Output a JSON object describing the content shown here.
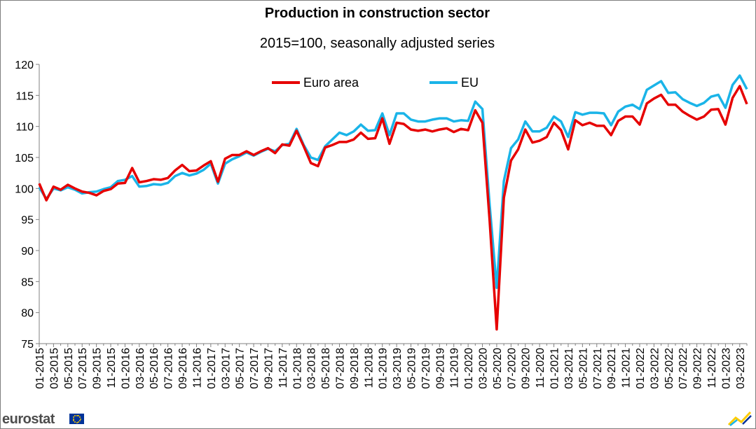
{
  "chart_data": {
    "type": "line",
    "title": "Production in construction sector",
    "subtitle": "2015=100, seasonally adjusted series",
    "xlabel": "",
    "ylabel": "",
    "ylim": [
      75,
      120
    ],
    "yticks": [
      75,
      80,
      85,
      90,
      95,
      100,
      105,
      110,
      115,
      120
    ],
    "x_start": "01-2015",
    "x_end": "03-2023",
    "x_tick_labels": [
      "01-2015",
      "03-2015",
      "05-2015",
      "07-2015",
      "09-2015",
      "11-2015",
      "01-2016",
      "03-2016",
      "05-2016",
      "07-2016",
      "09-2016",
      "11-2016",
      "01-2017",
      "03-2017",
      "05-2017",
      "07-2017",
      "09-2017",
      "11-2017",
      "01-2018",
      "03-2018",
      "05-2018",
      "07-2018",
      "09-2018",
      "11-2018",
      "01-2019",
      "03-2019",
      "05-2019",
      "07-2019",
      "09-2019",
      "11-2019",
      "01-2020",
      "03-2020",
      "05-2020",
      "07-2020",
      "09-2020",
      "11-2020",
      "01-2021",
      "03-2021",
      "05-2021",
      "07-2021",
      "09-2021",
      "11-2021",
      "01-2022",
      "03-2022",
      "05-2022",
      "07-2022",
      "09-2022",
      "11-2022",
      "01-2023",
      "03-2023"
    ],
    "grid": false,
    "legend_placement": "top-center",
    "series": [
      {
        "name": "Euro area",
        "color": "#e60000",
        "values": [
          100.8,
          98.1,
          100.3,
          99.8,
          100.6,
          100.0,
          99.5,
          99.3,
          98.9,
          99.6,
          99.9,
          100.8,
          100.9,
          103.3,
          101.0,
          101.2,
          101.5,
          101.4,
          101.7,
          102.9,
          103.8,
          102.8,
          102.9,
          103.7,
          104.4,
          101.1,
          104.8,
          105.4,
          105.4,
          106.0,
          105.4,
          106.0,
          106.5,
          105.7,
          107.1,
          106.9,
          109.3,
          106.8,
          104.1,
          103.6,
          106.6,
          107.0,
          107.5,
          107.5,
          107.9,
          109.0,
          108.0,
          108.1,
          111.3,
          107.2,
          110.6,
          110.4,
          109.5,
          109.3,
          109.5,
          109.2,
          109.5,
          109.7,
          109.1,
          109.6,
          109.4,
          112.6,
          110.6,
          95.0,
          77.3,
          98.5,
          104.5,
          106.3,
          109.5,
          107.4,
          107.7,
          108.3,
          110.6,
          109.4,
          106.3,
          111.0,
          110.2,
          110.6,
          110.1,
          110.1,
          108.6,
          110.9,
          111.6,
          111.6,
          110.3,
          113.7,
          114.5,
          115.1,
          113.5,
          113.5,
          112.4,
          111.7,
          111.1,
          111.6,
          112.7,
          112.8,
          110.3,
          114.6,
          116.5,
          113.6
        ]
      },
      {
        "name": "EU",
        "color": "#1ab4e8",
        "values": [
          100.2,
          98.3,
          100.0,
          99.7,
          100.2,
          99.8,
          99.2,
          99.4,
          99.5,
          99.9,
          100.2,
          101.2,
          101.4,
          102.0,
          100.3,
          100.4,
          100.7,
          100.6,
          100.9,
          102.0,
          102.5,
          102.1,
          102.4,
          103.0,
          104.0,
          100.8,
          104.0,
          104.7,
          105.2,
          105.8,
          105.3,
          105.9,
          106.4,
          106.0,
          107.0,
          107.2,
          109.6,
          107.0,
          105.0,
          104.6,
          106.8,
          107.9,
          109.0,
          108.6,
          109.2,
          110.3,
          109.3,
          109.4,
          112.1,
          108.6,
          112.1,
          112.1,
          111.1,
          110.8,
          110.8,
          111.1,
          111.3,
          111.3,
          110.8,
          111.0,
          110.9,
          114.0,
          112.8,
          97.5,
          84.0,
          101.2,
          106.5,
          107.9,
          110.8,
          109.2,
          109.2,
          109.8,
          111.6,
          110.8,
          108.3,
          112.3,
          111.9,
          112.2,
          112.2,
          112.1,
          110.2,
          112.4,
          113.2,
          113.5,
          112.8,
          115.9,
          116.6,
          117.3,
          115.4,
          115.5,
          114.4,
          113.8,
          113.3,
          113.8,
          114.8,
          115.1,
          113.0,
          116.7,
          118.2,
          116.0
        ]
      }
    ]
  },
  "footer": {
    "logo_text": "eurostat"
  },
  "icons": {
    "eu_flag": "eu-flag-icon",
    "brand_mark": "eurostat-brand-mark-icon"
  }
}
